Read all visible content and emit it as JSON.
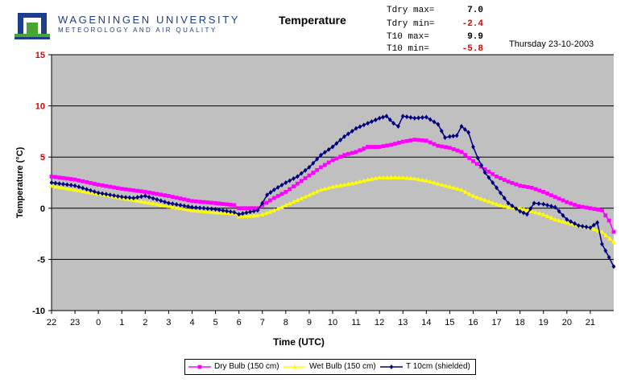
{
  "header": {
    "university": "WAGENINGEN UNIVERSITY",
    "department": "METEOROLOGY AND AIR QUALITY",
    "logo_icon": "wageningen-logo-icon"
  },
  "stats": [
    {
      "label": "Tdry max=",
      "value": "7.0",
      "color": "#000000"
    },
    {
      "label": "Tdry min=",
      "value": "-2.4",
      "color": "#e00000"
    },
    {
      "label": "T10  max=",
      "value": "9.9",
      "color": "#000000"
    },
    {
      "label": "T10  min=",
      "value": "-5.8",
      "color": "#e00000"
    }
  ],
  "date": "Thursday 23-10-2003",
  "chart_data": {
    "type": "line",
    "title": "Temperature",
    "xlabel": "Time (UTC)",
    "ylabel": "Temperature (°C)",
    "ylim": [
      -10,
      15
    ],
    "yticks": [
      "15",
      "10",
      "5",
      "0",
      "-5",
      "-10"
    ],
    "xlim": [
      22,
      46
    ],
    "x_tick_values": [
      22,
      23,
      24,
      25,
      26,
      27,
      28,
      29,
      30,
      31,
      32,
      33,
      34,
      35,
      36,
      37,
      38,
      39,
      40,
      41,
      42,
      43,
      44,
      45
    ],
    "x_tick_labels": [
      "22",
      "23",
      "0",
      "1",
      "2",
      "3",
      "4",
      "5",
      "6",
      "7",
      "8",
      "9",
      "10",
      "11",
      "12",
      "13",
      "14",
      "15",
      "16",
      "17",
      "18",
      "19",
      "20",
      "21"
    ],
    "grid": "horizontal",
    "background_color": "#c0c0c0",
    "legend_position": "bottom",
    "series": [
      {
        "name": "Dry Bulb (150 cm)",
        "color": "#ff00ff",
        "marker": "square",
        "points": [
          [
            22,
            3.1
          ],
          [
            23,
            2.8
          ],
          [
            24,
            2.3
          ],
          [
            25,
            1.9
          ],
          [
            26,
            1.6
          ],
          [
            27,
            1.2
          ],
          [
            28,
            0.7
          ],
          [
            29,
            0.5
          ],
          [
            29.8,
            0.3
          ],
          [
            30,
            0.0
          ],
          [
            30.8,
            0.0
          ],
          [
            31,
            0.3
          ],
          [
            31.5,
            1.0
          ],
          [
            32,
            1.6
          ],
          [
            32.5,
            2.4
          ],
          [
            33,
            3.2
          ],
          [
            33.5,
            4.0
          ],
          [
            34,
            4.7
          ],
          [
            34.5,
            5.2
          ],
          [
            35,
            5.5
          ],
          [
            35.5,
            6.0
          ],
          [
            36,
            6.0
          ],
          [
            36.5,
            6.2
          ],
          [
            37,
            6.5
          ],
          [
            37.5,
            6.7
          ],
          [
            38,
            6.6
          ],
          [
            38.5,
            6.1
          ],
          [
            39,
            5.9
          ],
          [
            39.5,
            5.5
          ],
          [
            40,
            4.6
          ],
          [
            40.5,
            3.8
          ],
          [
            41,
            3.1
          ],
          [
            41.5,
            2.6
          ],
          [
            42,
            2.2
          ],
          [
            42.5,
            2.0
          ],
          [
            43,
            1.6
          ],
          [
            43.5,
            1.1
          ],
          [
            44,
            0.6
          ],
          [
            44.5,
            0.2
          ],
          [
            45,
            0.0
          ],
          [
            45.5,
            -0.2
          ],
          [
            45.8,
            -1.2
          ],
          [
            46,
            -2.3
          ]
        ]
      },
      {
        "name": "Wet Bulb (150 cm)",
        "color": "#ffff00",
        "marker": "triangle",
        "points": [
          [
            22,
            2.2
          ],
          [
            23,
            1.8
          ],
          [
            24,
            1.4
          ],
          [
            25,
            1.0
          ],
          [
            26,
            0.6
          ],
          [
            27,
            0.2
          ],
          [
            28,
            -0.2
          ],
          [
            29,
            -0.4
          ],
          [
            29.8,
            -0.5
          ],
          [
            30,
            -0.8
          ],
          [
            30.8,
            -0.7
          ],
          [
            31,
            -0.6
          ],
          [
            31.5,
            -0.2
          ],
          [
            32,
            0.3
          ],
          [
            32.5,
            0.8
          ],
          [
            33,
            1.3
          ],
          [
            33.5,
            1.8
          ],
          [
            34,
            2.1
          ],
          [
            34.5,
            2.3
          ],
          [
            35,
            2.5
          ],
          [
            35.5,
            2.8
          ],
          [
            36,
            3.0
          ],
          [
            36.5,
            3.0
          ],
          [
            37,
            3.0
          ],
          [
            37.5,
            2.9
          ],
          [
            38,
            2.7
          ],
          [
            38.5,
            2.4
          ],
          [
            39,
            2.1
          ],
          [
            39.5,
            1.8
          ],
          [
            40,
            1.2
          ],
          [
            40.5,
            0.8
          ],
          [
            41,
            0.4
          ],
          [
            41.5,
            0.1
          ],
          [
            42,
            0.0
          ],
          [
            42.5,
            -0.3
          ],
          [
            43,
            -0.6
          ],
          [
            43.5,
            -1.1
          ],
          [
            44,
            -1.4
          ],
          [
            44.5,
            -1.7
          ],
          [
            45,
            -1.9
          ],
          [
            45.5,
            -2.3
          ],
          [
            46,
            -3.3
          ]
        ]
      },
      {
        "name": "T 10cm (shielded)",
        "color": "#00007f",
        "marker": "diamond",
        "points": [
          [
            22,
            2.5
          ],
          [
            23,
            2.2
          ],
          [
            24,
            1.5
          ],
          [
            24.5,
            1.3
          ],
          [
            25,
            1.1
          ],
          [
            25.5,
            1.0
          ],
          [
            26,
            1.2
          ],
          [
            27,
            0.5
          ],
          [
            28,
            0.1
          ],
          [
            29,
            -0.1
          ],
          [
            29.8,
            -0.4
          ],
          [
            30,
            -0.6
          ],
          [
            30.8,
            -0.2
          ],
          [
            31,
            0.5
          ],
          [
            31.2,
            1.3
          ],
          [
            31.5,
            1.8
          ],
          [
            32,
            2.5
          ],
          [
            32.5,
            3.1
          ],
          [
            33,
            4.0
          ],
          [
            33.5,
            5.2
          ],
          [
            34,
            6.0
          ],
          [
            34.5,
            7.0
          ],
          [
            35,
            7.8
          ],
          [
            35.5,
            8.3
          ],
          [
            36,
            8.8
          ],
          [
            36.3,
            9.0
          ],
          [
            36.6,
            8.3
          ],
          [
            36.8,
            8.0
          ],
          [
            37,
            9.0
          ],
          [
            37.5,
            8.8
          ],
          [
            38,
            8.9
          ],
          [
            38.5,
            8.2
          ],
          [
            38.8,
            6.9
          ],
          [
            39,
            7.0
          ],
          [
            39.3,
            7.1
          ],
          [
            39.5,
            8.0
          ],
          [
            39.8,
            7.4
          ],
          [
            40,
            6.0
          ],
          [
            40.2,
            4.9
          ],
          [
            40.5,
            3.5
          ],
          [
            41,
            2.0
          ],
          [
            41.5,
            0.5
          ],
          [
            42,
            -0.3
          ],
          [
            42.3,
            -0.6
          ],
          [
            42.6,
            0.5
          ],
          [
            43,
            0.4
          ],
          [
            43.5,
            0.1
          ],
          [
            44,
            -1.1
          ],
          [
            44.5,
            -1.7
          ],
          [
            45,
            -1.9
          ],
          [
            45.3,
            -1.4
          ],
          [
            45.5,
            -3.5
          ],
          [
            45.8,
            -4.8
          ],
          [
            46,
            -5.7
          ]
        ]
      }
    ]
  }
}
